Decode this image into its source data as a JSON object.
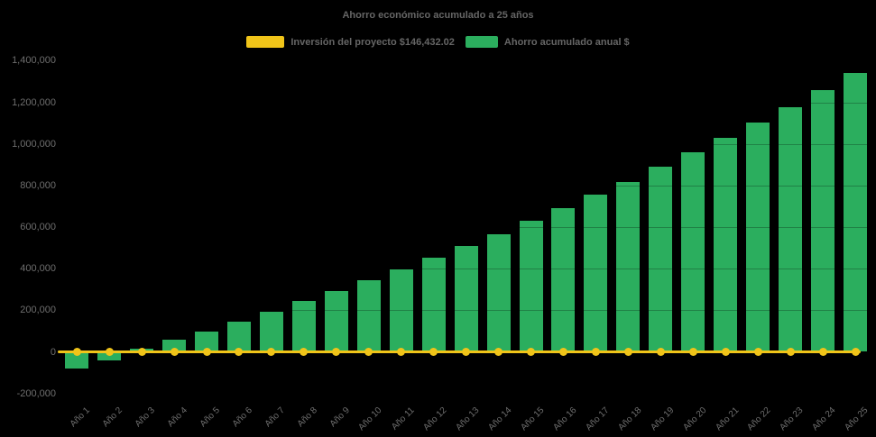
{
  "title": "Ahorro económico acumulado a 25 años",
  "legend": {
    "investment": {
      "label": "Inversión del proyecto $146,432.02",
      "color": "#F0C419"
    },
    "savings": {
      "label": "Ahorro acumulado anual $",
      "color": "#2BAE5E"
    }
  },
  "colors": {
    "background": "#000000",
    "axis_text": "#6e6e6e",
    "title_text": "#666666",
    "gridline": "rgba(0,0,0,0.25)"
  },
  "chart_data": {
    "type": "bar",
    "title": "Ahorro económico acumulado a 25 años",
    "xlabel": "",
    "ylabel": "",
    "ylim": [
      -200000,
      1400000
    ],
    "ytick_step": 200000,
    "grid": false,
    "legend_position": "top",
    "categories": [
      "Año 1",
      "Año 2",
      "Año 3",
      "Año 4",
      "Año 5",
      "Año 6",
      "Año 7",
      "Año 8",
      "Año 9",
      "Año 10",
      "Año 11",
      "Año 12",
      "Año 13",
      "Año 14",
      "Año 15",
      "Año 16",
      "Año 17",
      "Año 18",
      "Año 19",
      "Año 20",
      "Año 21",
      "Año 22",
      "Año 23",
      "Año 24",
      "Año 25"
    ],
    "series": [
      {
        "name": "Inversión del proyecto $146,432.02",
        "type": "line",
        "color": "#F0C419",
        "values": [
          0,
          0,
          0,
          0,
          0,
          0,
          0,
          0,
          0,
          0,
          0,
          0,
          0,
          0,
          0,
          0,
          0,
          0,
          0,
          0,
          0,
          0,
          0,
          0,
          0
        ]
      },
      {
        "name": "Ahorro acumulado anual $",
        "type": "bar",
        "color": "#2BAE5E",
        "values": [
          -80000,
          -40000,
          15000,
          57000,
          98000,
          147000,
          192000,
          245000,
          291000,
          345000,
          396000,
          455000,
          508000,
          566000,
          630000,
          690000,
          756000,
          819000,
          889000,
          960000,
          1030000,
          1102000,
          1177000,
          1258000,
          1340000
        ]
      }
    ]
  }
}
